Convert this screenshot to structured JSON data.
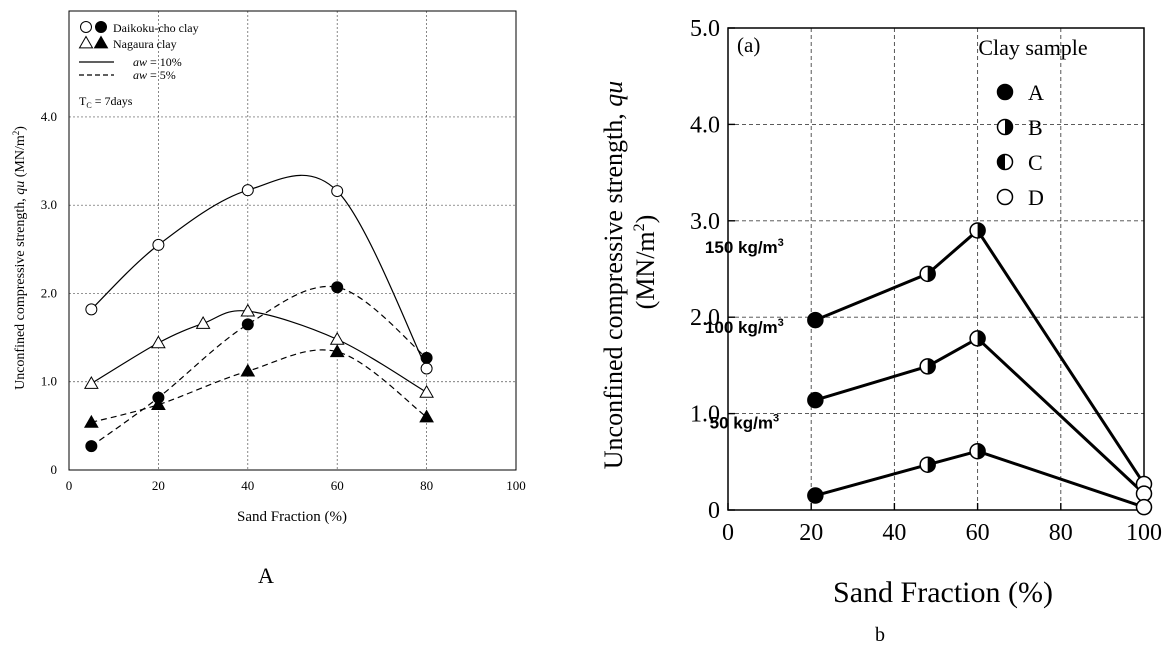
{
  "panels": {
    "a": {
      "caption": "A"
    },
    "b": {
      "caption": "b"
    }
  },
  "chart_data": [
    {
      "type": "scatter",
      "title": "",
      "xlabel": "Sand Fraction (%)",
      "ylabel": "Unconfined compressive strength, qu (MN/m²)",
      "ylabel_parts": [
        "Unconfined compressive strength, ",
        "qu",
        " (MN/m",
        "2",
        ")"
      ],
      "xlim": [
        0,
        100
      ],
      "ylim": [
        0,
        5.2
      ],
      "xticks": [
        0,
        20,
        40,
        60,
        80,
        100
      ],
      "yticks": [
        0,
        1.0,
        2.0,
        3.0,
        4.0
      ],
      "ytick_labels": [
        "0",
        "1.0",
        "2.0",
        "3.0",
        "4.0"
      ],
      "grid": true,
      "legend_position": "top-left",
      "legend": {
        "marker_entries": [
          {
            "label": "Daikoku-cho clay",
            "markers": [
              "circle-open",
              "circle-filled"
            ]
          },
          {
            "label": "Nagaura clay",
            "markers": [
              "triangle-open",
              "triangle-filled"
            ]
          }
        ],
        "line_entries": [
          {
            "label": "aw = 10%",
            "var": "aw",
            "rest": " = 10%",
            "dash": "solid"
          },
          {
            "label": "aw = 5%",
            "var": "aw",
            "rest": " =   5%",
            "dash": "dashed"
          }
        ],
        "note": {
          "main": "T",
          "sub": "C",
          "rest": " = 7days"
        }
      },
      "series": [
        {
          "name": "Daikoku-cho clay, aw = 10%",
          "marker": "circle-open",
          "line": "solid",
          "x": [
            5,
            20,
            40,
            60,
            80
          ],
          "y": [
            1.82,
            2.55,
            3.17,
            3.16,
            1.15
          ]
        },
        {
          "name": "Daikoku-cho clay, aw = 5%",
          "marker": "circle-filled",
          "line": "dashed",
          "x": [
            5,
            20,
            40,
            60,
            80
          ],
          "y": [
            0.27,
            0.82,
            1.65,
            2.07,
            1.27
          ]
        },
        {
          "name": "Nagaura clay, aw = 10%",
          "marker": "triangle-open",
          "line": "solid",
          "x": [
            5,
            20,
            30,
            40,
            60,
            80
          ],
          "y": [
            0.98,
            1.44,
            1.66,
            1.8,
            1.48,
            0.88
          ]
        },
        {
          "name": "Nagaura clay, aw = 5%",
          "marker": "triangle-filled",
          "line": "dashed",
          "x": [
            5,
            20,
            40,
            60,
            80
          ],
          "y": [
            0.54,
            0.74,
            1.12,
            1.34,
            0.6
          ]
        }
      ]
    },
    {
      "type": "line",
      "title": "",
      "panel_label": "(a)",
      "xlabel": "Sand Fraction (%)",
      "ylabel_line1": "Unconfined compressive strength, qu",
      "ylabel_line1_parts": [
        "Unconfined compressive strength, ",
        "qu"
      ],
      "ylabel_line2_parts": [
        "(MN/m",
        "2",
        ")"
      ],
      "xlim": [
        0,
        100
      ],
      "ylim": [
        0,
        5.0
      ],
      "xticks": [
        0,
        20,
        40,
        60,
        80,
        100
      ],
      "yticks": [
        0,
        1.0,
        2.0,
        3.0,
        4.0,
        5.0
      ],
      "ytick_labels": [
        "0",
        "1.0",
        "2.0",
        "3.0",
        "4.0",
        "5.0"
      ],
      "grid": true,
      "legend_position": "top-right",
      "legend": {
        "title": "Clay sample",
        "entries": [
          {
            "label": "A",
            "marker": "filled"
          },
          {
            "label": "B",
            "marker": "half-right"
          },
          {
            "label": "C",
            "marker": "half-left"
          },
          {
            "label": "D",
            "marker": "open"
          }
        ]
      },
      "series": [
        {
          "name": "150 kg/m³",
          "label_parts": [
            "150 kg/m",
            "3"
          ],
          "x": [
            21,
            48,
            60,
            100
          ],
          "y": [
            1.97,
            2.45,
            2.9,
            0.27
          ],
          "markers": [
            "filled",
            "half-right",
            "half-right",
            "open"
          ]
        },
        {
          "name": "100 kg/m³",
          "label_parts": [
            "100 kg/m",
            "3"
          ],
          "x": [
            21,
            48,
            60,
            100
          ],
          "y": [
            1.14,
            1.49,
            1.78,
            0.17
          ],
          "markers": [
            "filled",
            "half-right",
            "half-right",
            "open"
          ]
        },
        {
          "name": "50 kg/m³",
          "label_parts": [
            "50 kg/m",
            "3"
          ],
          "x": [
            21,
            48,
            60,
            100
          ],
          "y": [
            0.15,
            0.47,
            0.61,
            0.03
          ],
          "markers": [
            "filled",
            "half-right",
            "half-right",
            "open"
          ]
        }
      ]
    }
  ]
}
